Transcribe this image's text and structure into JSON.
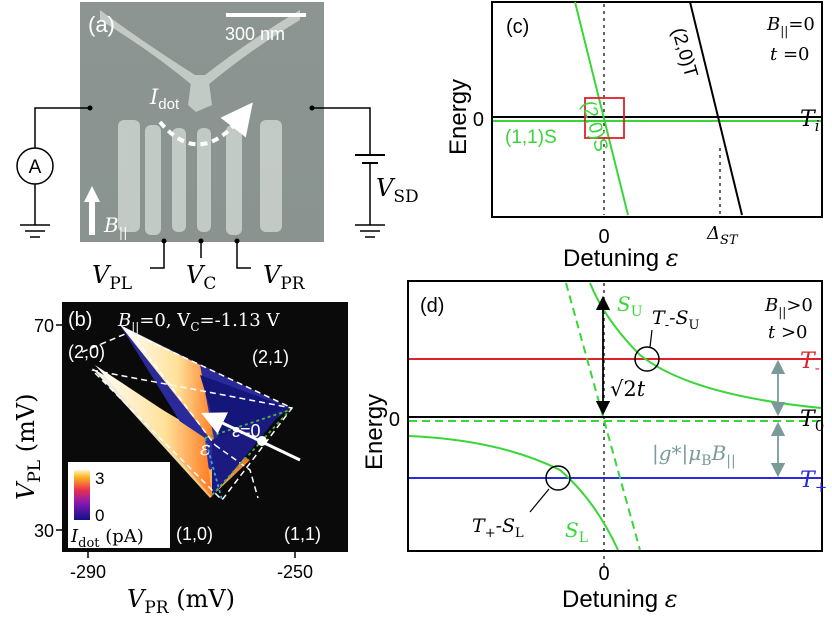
{
  "panel_a": {
    "label": "(a)",
    "scale_bar": "300 nm",
    "current_label": "I",
    "current_sub": "dot",
    "ammeter": "A",
    "field_label": "B",
    "field_sub": "||",
    "bias_label": "V",
    "bias_sub": "SD",
    "gates": [
      {
        "name": "V",
        "sub": "PL"
      },
      {
        "name": "V",
        "sub": "C"
      },
      {
        "name": "V",
        "sub": "PR"
      }
    ]
  },
  "panel_b": {
    "label": "(b)",
    "condition": "B",
    "condition_sub": "||",
    "condition_rest": "=0, V",
    "condition_sub2": "C",
    "condition_end": "=-1.13 V",
    "ylabel": "V",
    "ylabel_sub": "PL",
    "ylabel_unit": " (mV)",
    "xlabel": "V",
    "xlabel_sub": "PR",
    "xlabel_unit": " (mV)",
    "yticks": [
      "70",
      "30"
    ],
    "xticks": [
      "-290",
      "-250"
    ],
    "charge_states": [
      "(2,0)",
      "(2,1)",
      "(1,0)",
      "(1,1)"
    ],
    "eps_label": "ε",
    "eps_zero": "ε=0",
    "colorbar": {
      "max": "3",
      "min": "0",
      "label": "I",
      "label_sub": "dot",
      "unit": " (pA)"
    }
  },
  "panel_c": {
    "label": "(c)",
    "ylabel": "Energy",
    "xlabel": "Detuning ",
    "xlabel_sym": "ε",
    "zero_y": "0",
    "xticks": [
      "0",
      "Δ"
    ],
    "xtick_sub": "ST",
    "cond1": "B",
    "cond1_sub": "||",
    "cond1_val": "=0",
    "cond2": "t",
    "cond2_val": " =0",
    "lines": {
      "s20": "(2,0)S",
      "t20": "(2,0)T",
      "s11": "(1,1)S",
      "ti": "T",
      "ti_sub": "i"
    }
  },
  "panel_d": {
    "label": "(d)",
    "ylabel": "Energy",
    "xlabel": "Detuning ",
    "xlabel_sym": "ε",
    "zero_y": "0",
    "zero_x": "0",
    "cond1": "B",
    "cond1_sub": "||",
    "cond1_val": ">0",
    "cond2": "t",
    "cond2_val": " >0",
    "su": "S",
    "su_sub": "U",
    "sl": "S",
    "sl_sub": "L",
    "cross_upper": "T",
    "cross_upper_sub1": "-",
    "cross_upper_mid": "-S",
    "cross_upper_sub2": "U",
    "cross_lower": "T",
    "cross_lower_sub1": "+",
    "cross_lower_mid": "-S",
    "cross_lower_sub2": "L",
    "gap": "√2",
    "gap_t": "t",
    "zeeman": "|g*|μ",
    "zeeman_sub": "B",
    "zeeman_b": "B",
    "zeeman_b_sub": "||",
    "t_minus": "T",
    "t_minus_sub": "-",
    "t_zero": "T",
    "t_zero_sub": "0",
    "t_plus": "T",
    "t_plus_sub": "+",
    "colors": {
      "t_minus": "#e0202a",
      "t_zero": "#000000",
      "t_plus": "#2a2ad8",
      "singlet": "#39d63a",
      "arrow": "#7a9a9a"
    }
  }
}
